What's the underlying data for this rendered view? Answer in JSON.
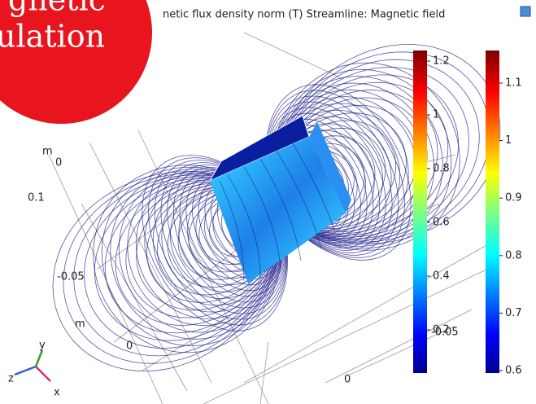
{
  "header": {
    "title": "netic flux density norm (T)  Streamline: Magnetic field",
    "badge_lines": [
      "gnetic",
      "ulation"
    ]
  },
  "colorbars": [
    {
      "ticks": [
        1.2,
        1,
        0.8,
        0.6,
        0.4,
        0.2
      ]
    },
    {
      "ticks": [
        1.1,
        1,
        0.9,
        0.8,
        0.7,
        0.6
      ]
    }
  ],
  "axis_labels": [
    "m",
    "0",
    "0.1",
    "-0.05",
    "m",
    "0",
    "0",
    "-0.05"
  ],
  "triad": [
    "z",
    "y",
    "x"
  ]
}
